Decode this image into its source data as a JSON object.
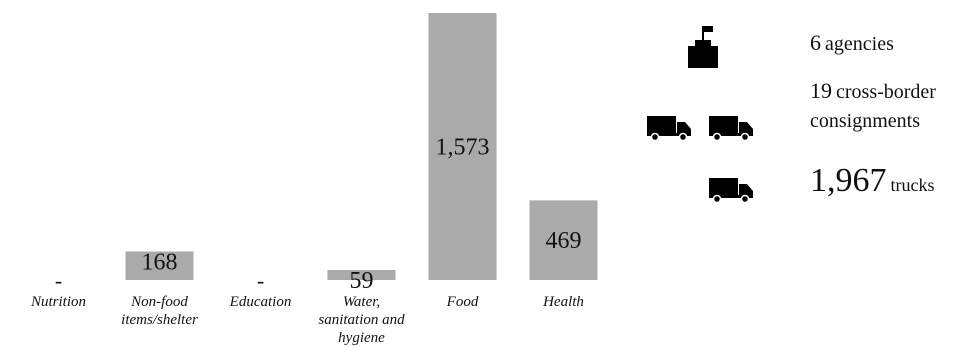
{
  "chart_data": {
    "type": "bar",
    "categories": [
      "Nutrition",
      "Non-food items/shelter",
      "Education",
      "Water, sanitation and hygiene",
      "Food",
      "Health"
    ],
    "category_labels": [
      [
        "Nutrition"
      ],
      [
        "Non-food",
        "items/shelter"
      ],
      [
        "Education"
      ],
      [
        "Water,",
        "sanitation and",
        "hygiene"
      ],
      [
        "Food"
      ],
      [
        "Health"
      ]
    ],
    "values": [
      null,
      168,
      null,
      59,
      1573,
      469
    ],
    "value_labels": [
      "-",
      "168",
      "-",
      "59",
      "1,573",
      "469"
    ],
    "ylim": [
      0,
      1573
    ],
    "bar_color": "#aaaaaa",
    "grid": false,
    "title": "",
    "xlabel": "",
    "ylabel": ""
  },
  "stats": {
    "agencies": {
      "number": "6",
      "label": "agencies",
      "icon": "building-flag-icon"
    },
    "consignments": {
      "number": "19",
      "label_line1": "cross-border",
      "label_line2": "consignments",
      "icon": "truck-icon"
    },
    "trucks": {
      "number": "1,967",
      "label": "trucks",
      "icon": "truck-icon"
    }
  }
}
